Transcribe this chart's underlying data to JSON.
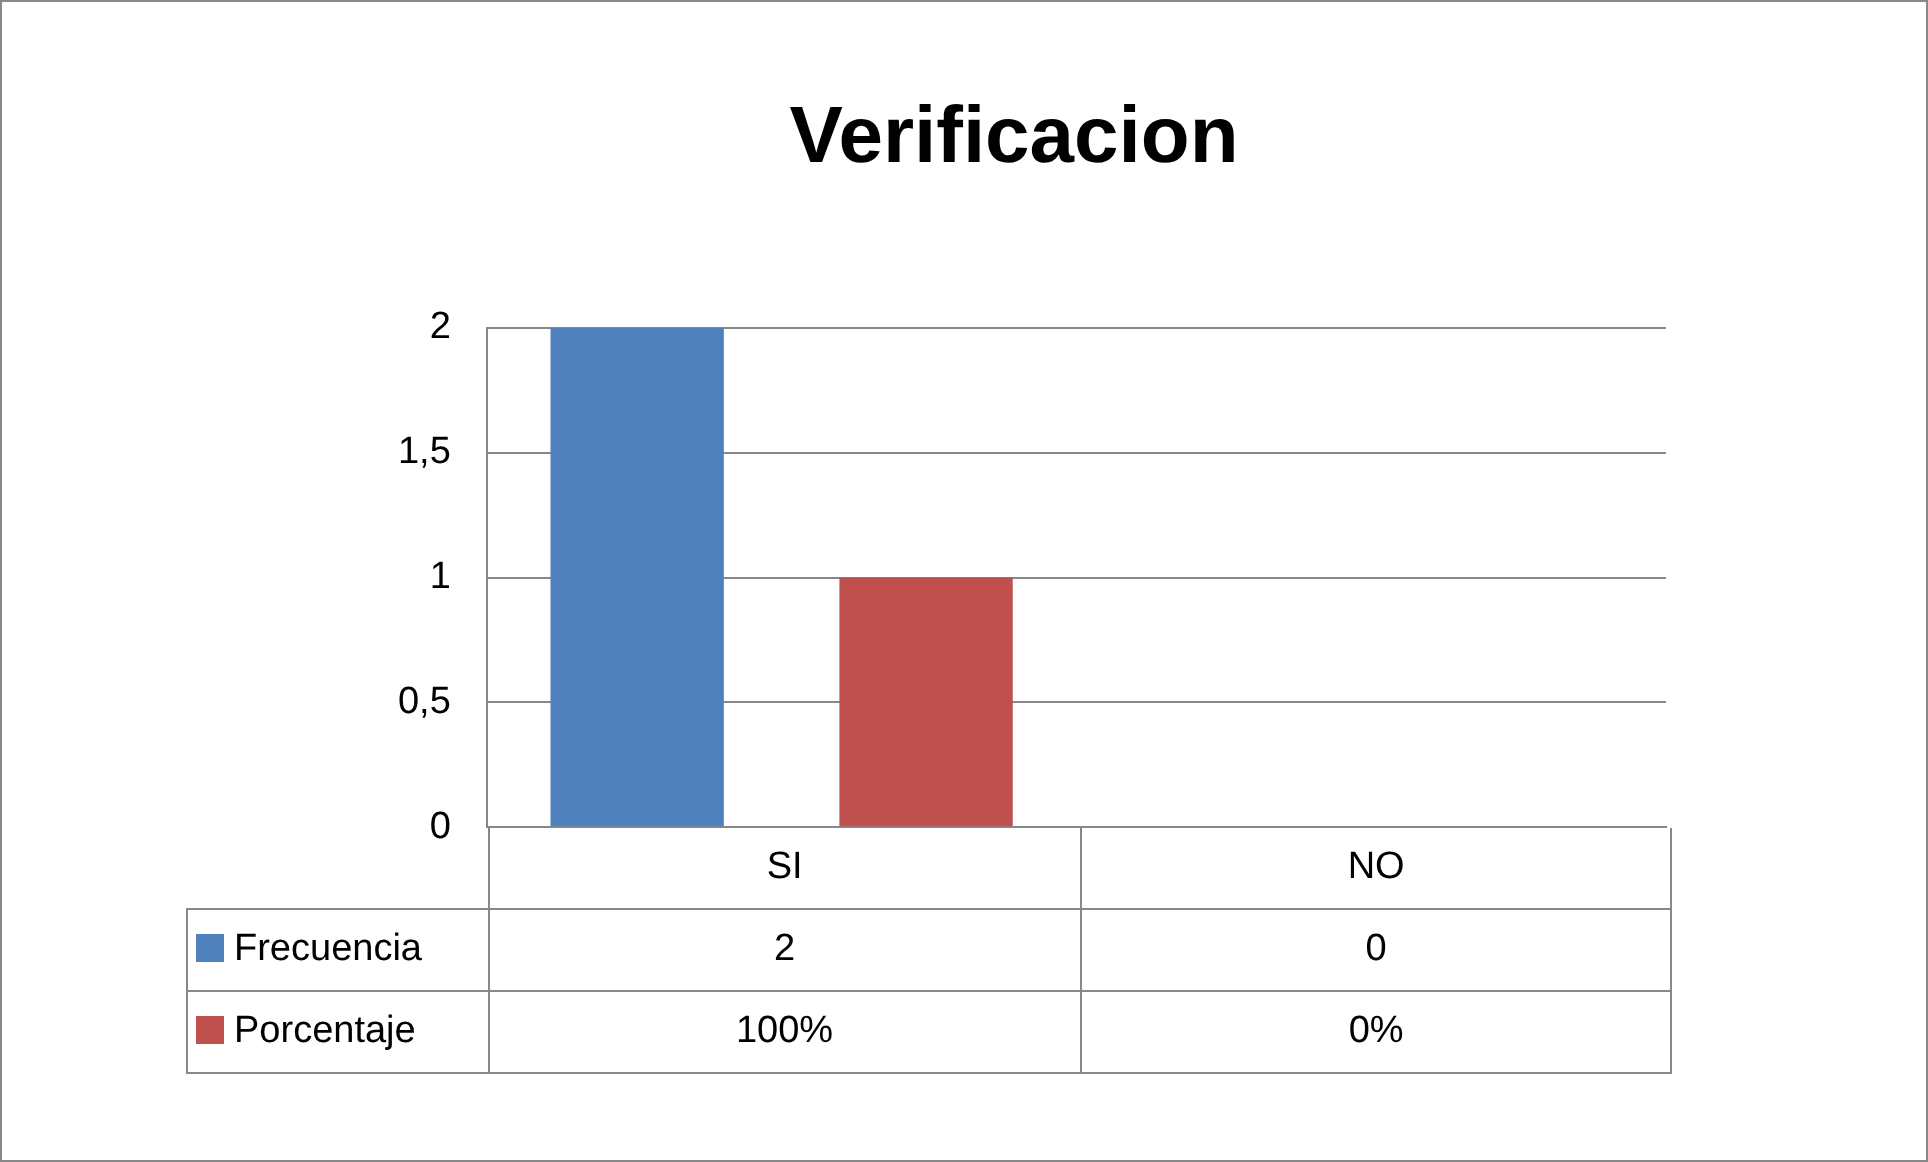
{
  "chart_data": {
    "type": "bar",
    "title": "Verificacion",
    "categories": [
      "SI",
      "NO"
    ],
    "series": [
      {
        "name": "Frecuencia",
        "color": "#4f81bd",
        "values": [
          2,
          0
        ],
        "value_labels": [
          "2",
          "0"
        ]
      },
      {
        "name": "Porcentaje",
        "color": "#c0504d",
        "values": [
          1,
          0
        ],
        "value_labels": [
          "100%",
          "0%"
        ]
      }
    ],
    "ylim": [
      0,
      2
    ],
    "yticks": [
      0,
      {
        "value": 0.5,
        "label": "0,5"
      },
      1,
      {
        "value": 1.5,
        "label": "1,5"
      },
      2
    ],
    "grid": "y",
    "legend": "bottom"
  }
}
